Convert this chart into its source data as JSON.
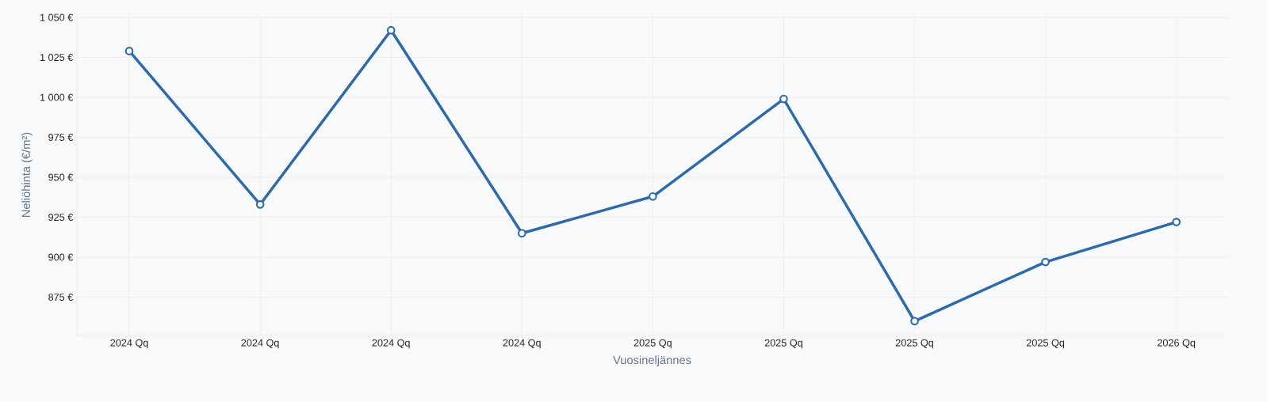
{
  "chart_data": {
    "type": "line",
    "xlabel": "Vuosineljännes",
    "ylabel": "Neliöhinta (€/m²)",
    "categories": [
      "2024 Qq",
      "2024 Qq",
      "2024 Qq",
      "2024 Qq",
      "2025 Qq",
      "2025 Qq",
      "2025 Qq",
      "2025 Qq",
      "2026 Qq"
    ],
    "series": [
      {
        "color": "#2e6aa8",
        "values": [
          1029,
          933,
          1042,
          915,
          938,
          999,
          860,
          897,
          922
        ]
      }
    ],
    "ylim": [
      851,
      1052
    ],
    "yticks": [
      {
        "value": 875,
        "label": "875 €"
      },
      {
        "value": 900,
        "label": "900 €"
      },
      {
        "value": 925,
        "label": "925 €"
      },
      {
        "value": 950,
        "label": "950 €"
      },
      {
        "value": 975,
        "label": "975 €"
      },
      {
        "value": 1000,
        "label": "1 000 €"
      },
      {
        "value": 1025,
        "label": "1 025 €"
      },
      {
        "value": 1050,
        "label": "1 050 €"
      }
    ],
    "grid": true,
    "marker": "circle",
    "line_style": "solid"
  }
}
